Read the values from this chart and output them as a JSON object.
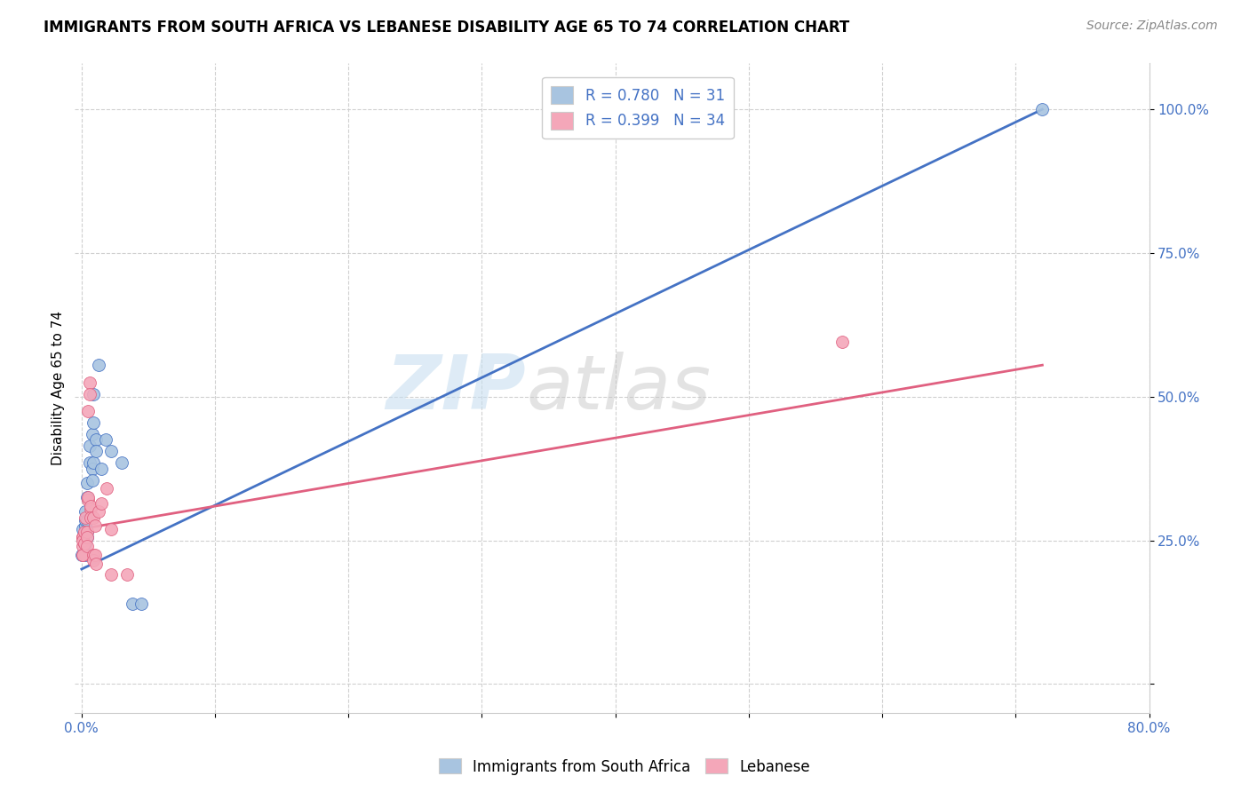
{
  "title": "IMMIGRANTS FROM SOUTH AFRICA VS LEBANESE DISABILITY AGE 65 TO 74 CORRELATION CHART",
  "source": "Source: ZipAtlas.com",
  "ylabel": "Disability Age 65 to 74",
  "xlim": [
    -0.005,
    0.8
  ],
  "ylim": [
    -0.05,
    1.08
  ],
  "x_ticks": [
    0.0,
    0.1,
    0.2,
    0.3,
    0.4,
    0.5,
    0.6,
    0.7,
    0.8
  ],
  "x_tick_labels": [
    "0.0%",
    "",
    "",
    "",
    "",
    "",
    "",
    "",
    "80.0%"
  ],
  "y_ticks": [
    0.0,
    0.25,
    0.5,
    0.75,
    1.0
  ],
  "y_tick_labels": [
    "",
    "25.0%",
    "50.0%",
    "75.0%",
    "100.0%"
  ],
  "legend_r1": "R = 0.780   N = 31",
  "legend_r2": "R = 0.399   N = 34",
  "color_blue": "#a8c4e0",
  "color_pink": "#f4a7b9",
  "line_blue": "#4472c4",
  "line_pink": "#e06080",
  "watermark_zip": "ZIP",
  "watermark_atlas": "atlas",
  "sa_points": [
    [
      0.0,
      0.225
    ],
    [
      0.001,
      0.27
    ],
    [
      0.002,
      0.245
    ],
    [
      0.003,
      0.275
    ],
    [
      0.003,
      0.245
    ],
    [
      0.003,
      0.225
    ],
    [
      0.003,
      0.285
    ],
    [
      0.003,
      0.3
    ],
    [
      0.004,
      0.325
    ],
    [
      0.004,
      0.35
    ],
    [
      0.004,
      0.285
    ],
    [
      0.004,
      0.265
    ],
    [
      0.004,
      0.255
    ],
    [
      0.006,
      0.385
    ],
    [
      0.006,
      0.415
    ],
    [
      0.008,
      0.435
    ],
    [
      0.008,
      0.375
    ],
    [
      0.008,
      0.355
    ],
    [
      0.009,
      0.505
    ],
    [
      0.009,
      0.455
    ],
    [
      0.009,
      0.385
    ],
    [
      0.011,
      0.425
    ],
    [
      0.011,
      0.405
    ],
    [
      0.013,
      0.555
    ],
    [
      0.015,
      0.375
    ],
    [
      0.018,
      0.425
    ],
    [
      0.022,
      0.405
    ],
    [
      0.03,
      0.385
    ],
    [
      0.038,
      0.14
    ],
    [
      0.045,
      0.14
    ],
    [
      0.72,
      1.0
    ]
  ],
  "lb_points": [
    [
      0.001,
      0.255
    ],
    [
      0.001,
      0.24
    ],
    [
      0.001,
      0.225
    ],
    [
      0.001,
      0.255
    ],
    [
      0.001,
      0.225
    ],
    [
      0.001,
      0.255
    ],
    [
      0.001,
      0.25
    ],
    [
      0.002,
      0.265
    ],
    [
      0.002,
      0.245
    ],
    [
      0.003,
      0.29
    ],
    [
      0.004,
      0.265
    ],
    [
      0.004,
      0.255
    ],
    [
      0.004,
      0.24
    ],
    [
      0.005,
      0.32
    ],
    [
      0.005,
      0.325
    ],
    [
      0.005,
      0.475
    ],
    [
      0.006,
      0.525
    ],
    [
      0.006,
      0.505
    ],
    [
      0.007,
      0.305
    ],
    [
      0.007,
      0.31
    ],
    [
      0.007,
      0.29
    ],
    [
      0.009,
      0.29
    ],
    [
      0.009,
      0.225
    ],
    [
      0.009,
      0.215
    ],
    [
      0.01,
      0.275
    ],
    [
      0.01,
      0.225
    ],
    [
      0.011,
      0.21
    ],
    [
      0.013,
      0.3
    ],
    [
      0.015,
      0.315
    ],
    [
      0.019,
      0.34
    ],
    [
      0.022,
      0.27
    ],
    [
      0.022,
      0.19
    ],
    [
      0.034,
      0.19
    ],
    [
      0.57,
      0.595
    ]
  ],
  "blue_trendline_x": [
    0.0,
    0.72
  ],
  "blue_trendline_y": [
    0.2,
    1.0
  ],
  "pink_trendline_x": [
    0.0,
    0.72
  ],
  "pink_trendline_y": [
    0.27,
    0.555
  ]
}
